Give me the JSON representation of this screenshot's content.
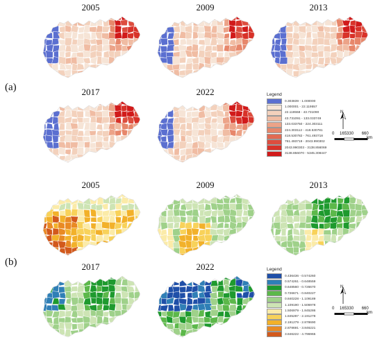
{
  "figure": {
    "panels": [
      {
        "label": "(a)",
        "years": [
          "2005",
          "2009",
          "2013",
          "2017",
          "2022"
        ],
        "legend": {
          "title": "Legend",
          "items": [
            {
              "range": "0.303839 - 1.000000",
              "color": "#5b6fd0"
            },
            {
              "range": "1.000001 - 22.119557",
              "color": "#f6e4d6"
            },
            {
              "range": "22.119558 - 43.731090",
              "color": "#f3d1bc"
            },
            {
              "range": "43.731091 - 133.033749",
              "color": "#f0bca3"
            },
            {
              "range": "133.033750 - 224.303111",
              "color": "#eca388"
            },
            {
              "range": "224.303112 - 418.530781",
              "color": "#e7876b"
            },
            {
              "range": "418.530782 - 761.493718",
              "color": "#e26a52"
            },
            {
              "range": "761.493719 - 2043.990302",
              "color": "#dd4d3e"
            },
            {
              "range": "2043.990303 - 3138.856069",
              "color": "#d83229"
            },
            {
              "range": "3138.856070 - 5345.308447",
              "color": "#d11a1a"
            }
          ]
        },
        "scale": {
          "north": "N",
          "ticks": [
            "0",
            "165330",
            "660"
          ],
          "unit": "km"
        }
      },
      {
        "label": "(b)",
        "years": [
          "2005",
          "2009",
          "2013",
          "2017",
          "2022"
        ],
        "legend": {
          "title": "Legend",
          "items": [
            {
              "range": "0.436436 - 0.574260",
              "color": "#1f4fa8"
            },
            {
              "range": "0.574261 - 0.648559",
              "color": "#2f7fb6"
            },
            {
              "range": "0.648560 - 0.726670",
              "color": "#1e9a2e"
            },
            {
              "range": "0.726671 - 0.840227",
              "color": "#5cb84a"
            },
            {
              "range": "0.840228 - 1.109189",
              "color": "#9fd18a"
            },
            {
              "range": "1.109190 - 1.506978",
              "color": "#cde4b4"
            },
            {
              "range": "1.506979 - 1.845286",
              "color": "#fbeba8"
            },
            {
              "range": "1.845287 - 2.191278",
              "color": "#f8d25a"
            },
            {
              "range": "2.191279 - 2.878690",
              "color": "#f2b12a"
            },
            {
              "range": "2.878691 - 3.846221",
              "color": "#e98a24"
            },
            {
              "range": "3.846222 - 4.796965",
              "color": "#d2591c"
            }
          ]
        },
        "scale": {
          "north": "N",
          "ticks": [
            "0",
            "165330",
            "660"
          ],
          "unit": "km"
        }
      }
    ]
  }
}
